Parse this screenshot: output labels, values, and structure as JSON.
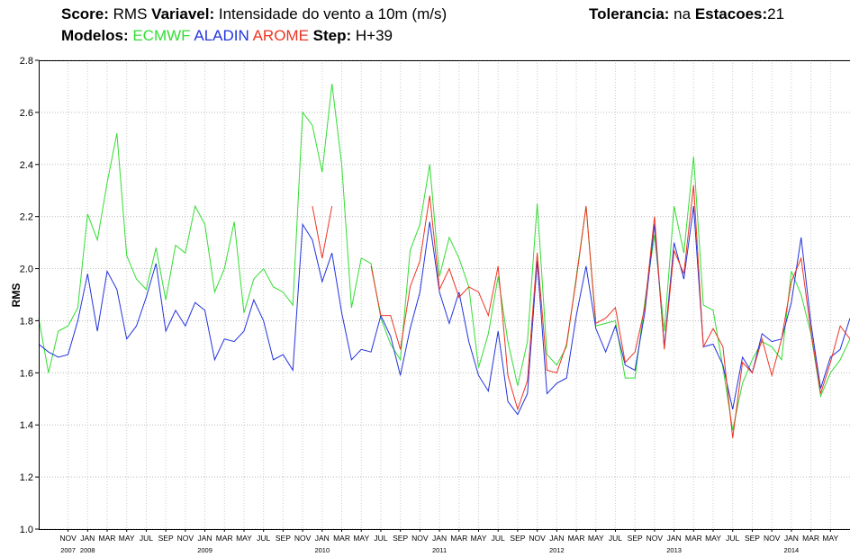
{
  "chart_data": {
    "type": "line",
    "header": {
      "score_label": "Score:",
      "score": "RMS",
      "variable_label": "Variavel:",
      "variable": "Intensidade do vento a 10m (m/s)",
      "tolerance_label": "Tolerancia:",
      "tolerance": "na",
      "stations_label": "Estacoes:",
      "stations": "21",
      "models_label": "Modelos:",
      "step_label": "Step:",
      "step": "H+39"
    },
    "y_label": "RMS",
    "categories": [
      null,
      null,
      null,
      "NOV",
      null,
      "JAN",
      null,
      "MAR",
      null,
      "MAY",
      null,
      "JUL",
      null,
      "SEP",
      null,
      "NOV",
      null,
      "JAN",
      null,
      "MAR",
      null,
      "MAY",
      null,
      "JUL",
      null,
      "SEP",
      null,
      "NOV",
      null,
      "JAN",
      null,
      "MAR",
      null,
      "MAY",
      null,
      "JUL",
      null,
      "SEP",
      null,
      "NOV",
      null,
      "JAN",
      null,
      "MAR",
      null,
      "MAY",
      null,
      "JUL",
      null,
      "SEP",
      null,
      "NOV",
      null,
      "JAN",
      null,
      "MAR",
      null,
      "MAY",
      null,
      "JUL",
      null,
      "SEP",
      null,
      "NOV",
      null,
      "JAN",
      null,
      "MAR",
      null,
      "MAY",
      null,
      "JUL",
      null,
      "SEP",
      null,
      "NOV",
      null,
      "JAN",
      null,
      "MAR",
      null,
      "MAY",
      null,
      null
    ],
    "years": [
      null,
      null,
      null,
      "2007",
      null,
      "2008",
      null,
      null,
      null,
      null,
      null,
      null,
      null,
      null,
      null,
      null,
      null,
      "2009",
      null,
      null,
      null,
      null,
      null,
      null,
      null,
      null,
      null,
      null,
      null,
      "2010",
      null,
      null,
      null,
      null,
      null,
      null,
      null,
      null,
      null,
      null,
      null,
      "2011",
      null,
      null,
      null,
      null,
      null,
      null,
      null,
      null,
      null,
      null,
      null,
      "2012",
      null,
      null,
      null,
      null,
      null,
      null,
      null,
      null,
      null,
      null,
      null,
      "2013",
      null,
      null,
      null,
      null,
      null,
      null,
      null,
      null,
      null,
      null,
      null,
      "2014",
      null,
      null,
      null,
      null,
      null,
      null
    ],
    "series": [
      {
        "name": "ECMWF",
        "color": "#33dd33",
        "values": [
          1.81,
          1.6,
          1.76,
          1.78,
          1.85,
          2.21,
          2.11,
          2.33,
          2.52,
          2.05,
          1.96,
          1.92,
          2.08,
          1.88,
          2.09,
          2.06,
          2.24,
          2.17,
          1.91,
          2.0,
          2.18,
          1.83,
          1.96,
          2.0,
          1.93,
          1.91,
          1.86,
          2.6,
          2.55,
          2.37,
          2.71,
          2.4,
          1.85,
          2.04,
          2.02,
          1.81,
          1.71,
          1.65,
          2.07,
          2.17,
          2.4,
          1.97,
          2.12,
          2.04,
          1.93,
          1.62,
          1.75,
          1.97,
          1.72,
          1.55,
          1.72,
          2.25,
          1.67,
          1.63,
          1.7,
          1.97,
          2.24,
          1.78,
          1.79,
          1.8,
          1.58,
          1.58,
          1.87,
          2.13,
          1.76,
          2.24,
          2.06,
          2.43,
          1.86,
          1.84,
          1.62,
          1.38,
          1.56,
          1.65,
          1.72,
          1.7,
          1.65,
          1.99,
          1.9,
          1.75,
          1.51,
          1.6,
          1.65,
          1.73
        ]
      },
      {
        "name": "ALADIN",
        "color": "#2233dd",
        "values": [
          1.71,
          1.68,
          1.66,
          1.67,
          1.8,
          1.98,
          1.76,
          1.99,
          1.92,
          1.73,
          1.78,
          1.89,
          2.02,
          1.76,
          1.84,
          1.78,
          1.87,
          1.84,
          1.65,
          1.73,
          1.72,
          1.76,
          1.88,
          1.8,
          1.65,
          1.67,
          1.61,
          2.17,
          2.11,
          1.95,
          2.06,
          1.83,
          1.65,
          1.69,
          1.68,
          1.82,
          1.74,
          1.59,
          1.77,
          1.91,
          2.18,
          1.91,
          1.79,
          1.91,
          1.72,
          1.59,
          1.53,
          1.76,
          1.49,
          1.44,
          1.52,
          2.03,
          1.52,
          1.56,
          1.58,
          1.82,
          2.01,
          1.77,
          1.68,
          1.78,
          1.63,
          1.61,
          1.83,
          2.17,
          1.7,
          2.1,
          1.96,
          2.24,
          1.7,
          1.71,
          1.63,
          1.46,
          1.66,
          1.6,
          1.75,
          1.72,
          1.73,
          1.87,
          2.12,
          1.79,
          1.54,
          1.66,
          1.69,
          1.81
        ]
      },
      {
        "name": "AROME",
        "color": "#ee3322",
        "values": [
          null,
          null,
          null,
          null,
          null,
          null,
          null,
          null,
          null,
          null,
          null,
          null,
          null,
          null,
          null,
          null,
          null,
          null,
          null,
          null,
          null,
          null,
          null,
          null,
          null,
          null,
          null,
          null,
          2.24,
          2.04,
          2.24,
          null,
          null,
          null,
          2.01,
          1.82,
          1.82,
          1.69,
          1.93,
          2.03,
          2.28,
          1.92,
          2.0,
          1.89,
          1.93,
          1.91,
          1.82,
          2.01,
          1.59,
          1.46,
          1.57,
          2.06,
          1.61,
          1.6,
          1.71,
          1.96,
          2.24,
          1.79,
          1.81,
          1.85,
          1.64,
          1.68,
          1.85,
          2.2,
          1.69,
          2.07,
          1.98,
          2.32,
          1.7,
          1.77,
          1.7,
          1.35,
          1.64,
          1.6,
          1.73,
          1.59,
          1.73,
          1.95,
          2.04,
          1.76,
          1.52,
          1.64,
          1.78,
          1.73
        ]
      }
    ],
    "ylim": [
      1.0,
      2.8
    ],
    "yticks": [
      {
        "value": 1.0,
        "label": "1.0"
      },
      {
        "value": 1.2,
        "label": "1.2"
      },
      {
        "value": 1.4,
        "label": "1.4"
      },
      {
        "value": 1.6,
        "label": "1.6"
      },
      {
        "value": 1.8,
        "label": "1.8"
      },
      {
        "value": 2.0,
        "label": "2.0"
      },
      {
        "value": 2.2,
        "label": "2.2"
      },
      {
        "value": 2.4,
        "label": "2.4"
      },
      {
        "value": 2.6,
        "label": "2.6"
      },
      {
        "value": 2.8,
        "label": "2.8"
      }
    ],
    "grid": true
  }
}
